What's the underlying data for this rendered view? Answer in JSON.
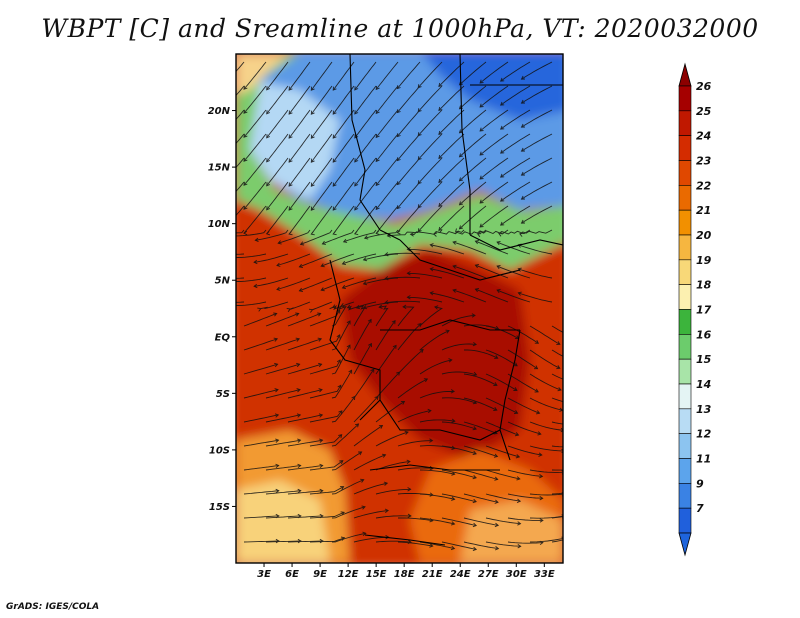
{
  "title": "WBPT [C] and Sreamline at 1000hPa, VT: 2020032000",
  "credit": "GrADS: IGES/COLA",
  "map": {
    "lat_labels": [
      "20N",
      "15N",
      "10N",
      "5N",
      "EQ",
      "5S",
      "10S",
      "15S"
    ],
    "lat_values": [
      20,
      15,
      10,
      5,
      0,
      -5,
      -10,
      -15
    ],
    "lon_labels": [
      "3E",
      "6E",
      "9E",
      "12E",
      "15E",
      "18E",
      "21E",
      "24E",
      "27E",
      "30E",
      "33E"
    ],
    "lon_values": [
      3,
      6,
      9,
      12,
      15,
      18,
      21,
      24,
      27,
      30,
      33
    ],
    "lon_range": [
      0,
      35
    ],
    "lat_range": [
      -20,
      25
    ]
  },
  "colorbar": {
    "labels": [
      "26",
      "25",
      "24",
      "23",
      "22",
      "21",
      "20",
      "19",
      "18",
      "17",
      "16",
      "15",
      "14",
      "13",
      "12",
      "11",
      "9",
      "7"
    ],
    "colors": [
      "#a50000",
      "#c01800",
      "#d42c00",
      "#e04800",
      "#ea6a00",
      "#f29000",
      "#f6b640",
      "#f8d878",
      "#fcf0b0",
      "#3cb43c",
      "#6ccc6c",
      "#a8e4a8",
      "#e4f4f4",
      "#b8dcf4",
      "#8cc4f0",
      "#5ca4ec",
      "#3a82e4",
      "#2060dc"
    ],
    "top_arrow_color": "#8c0000",
    "bottom_arrow_color": "#1e64dc"
  }
}
